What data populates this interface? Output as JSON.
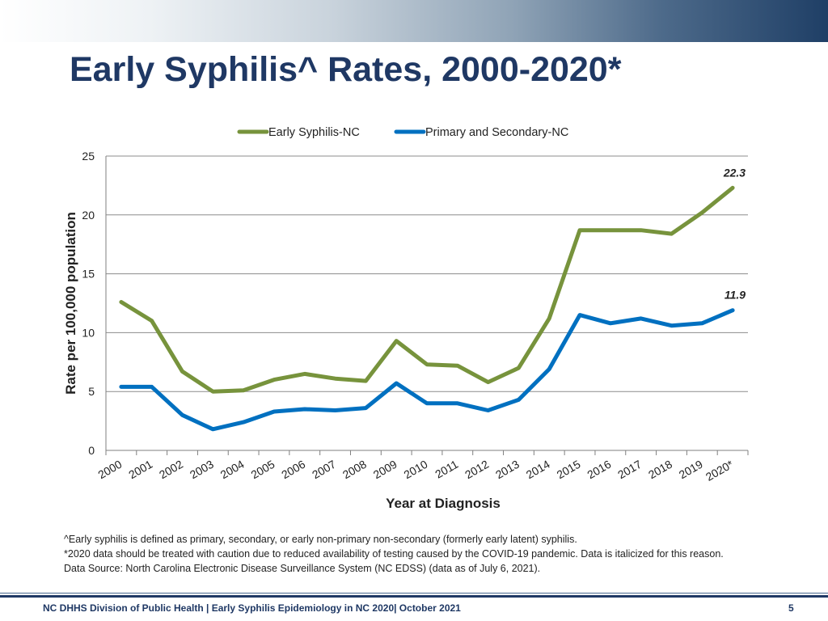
{
  "slide": {
    "title": "Early Syphilis^ Rates, 2000-2020*",
    "footnotes": [
      "^Early syphilis is defined as primary, secondary,  or early non-primary  non-secondary  (formerly early latent) syphilis.",
      "*2020 data should be treated with caution due to reduced availability of testing caused by the COVID-19 pandemic. Data is italicized for this reason.",
      "Data Source: North Carolina Electronic Disease Surveillance System (NC EDSS) (data as of July 6, 2021)."
    ],
    "footer": "NC DHHS Division of Public Health | Early Syphilis Epidemiology in NC 2020| October 2021",
    "page_number": "5"
  },
  "chart_data": {
    "type": "line",
    "xlabel": "Year at Diagnosis",
    "ylabel": "Rate per 100,000 population",
    "ylim": [
      0,
      25
    ],
    "yticks": [
      0,
      5,
      10,
      15,
      20,
      25
    ],
    "grid": true,
    "legend_position": "top",
    "categories": [
      "2000",
      "2001",
      "2002",
      "2003",
      "2004",
      "2005",
      "2006",
      "2007",
      "2008",
      "2009",
      "2010",
      "2011",
      "2012",
      "2013",
      "2014",
      "2015",
      "2016",
      "2017",
      "2018",
      "2019",
      "2020*"
    ],
    "series": [
      {
        "name": "Early Syphilis-NC",
        "color": "#77933c",
        "values": [
          12.6,
          11.0,
          6.7,
          5.0,
          5.1,
          6.0,
          6.5,
          6.1,
          5.9,
          9.3,
          7.3,
          7.2,
          5.8,
          7.0,
          11.2,
          18.7,
          18.7,
          18.7,
          18.4,
          20.2,
          22.3
        ],
        "end_label": "22.3"
      },
      {
        "name": "Primary and Secondary-NC",
        "color": "#0070c0",
        "values": [
          5.4,
          5.4,
          3.0,
          1.8,
          2.4,
          3.3,
          3.5,
          3.4,
          3.6,
          5.7,
          4.0,
          4.0,
          3.4,
          4.3,
          6.9,
          11.5,
          10.8,
          11.2,
          10.6,
          10.8,
          11.9
        ],
        "end_label": "11.9"
      }
    ]
  }
}
